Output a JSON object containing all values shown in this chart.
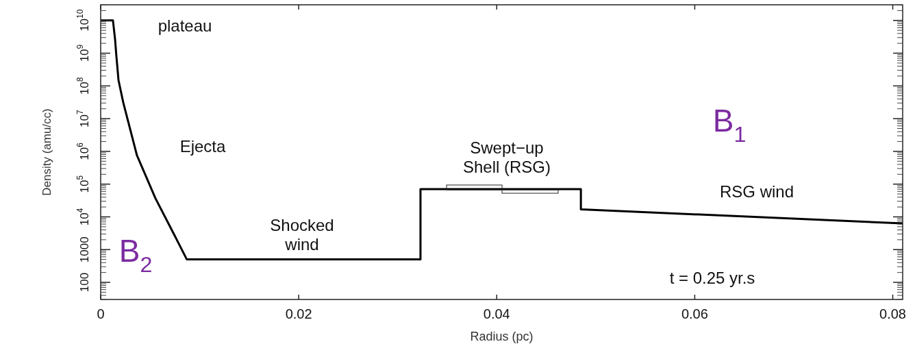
{
  "chart_data": {
    "type": "line",
    "xlabel": "Radius (pc)",
    "ylabel": "Density (amu/cc)",
    "log": "y",
    "xlim": [
      0,
      0.081
    ],
    "xticks": [
      0,
      0.02,
      0.04,
      0.06,
      0.08
    ],
    "ylim": [
      30,
      30000000000.0
    ],
    "yticks": [
      100,
      1000,
      {
        "value": 10000,
        "label": "10$^{4}$"
      },
      {
        "value": 100000,
        "label": "10$^{5}$"
      },
      {
        "value": 1000000,
        "label": "10$^{6}$"
      },
      {
        "value": 10000000,
        "label": "10$^{7}$"
      },
      {
        "value": 100000000,
        "label": "10$^{8}$"
      },
      {
        "value": 1000000000,
        "label": "10$^{9}$"
      },
      {
        "value": 10000000000,
        "label": "10$^{10}$"
      }
    ],
    "grid": false,
    "marker": "none",
    "line_style": "solid",
    "series": [
      {
        "color": "#000000",
        "x": [
          0,
          0.00124,
          0.00145,
          0.00159,
          0.0018,
          0.00228,
          0.00366,
          0.00553,
          0.00732,
          0.0087,
          0.0323,
          0.0323,
          0.0485,
          0.0485,
          0.081
        ],
        "values": [
          10000000000.0,
          10000000000.0,
          2700000000.0,
          780000000.0,
          150000000.0,
          31000000.0,
          760000.0,
          37000.0,
          3300,
          500,
          500,
          70000.0,
          70000.0,
          17000.0,
          6300
        ]
      }
    ],
    "annotations": [
      "plateau",
      "Ejecta",
      "Shocked\nwind",
      "Swept−up\n Shell (RSG)",
      "RSG wind",
      "t = 0.25  yr.s",
      "B$_{1}$",
      "B$_{2}$"
    ]
  }
}
